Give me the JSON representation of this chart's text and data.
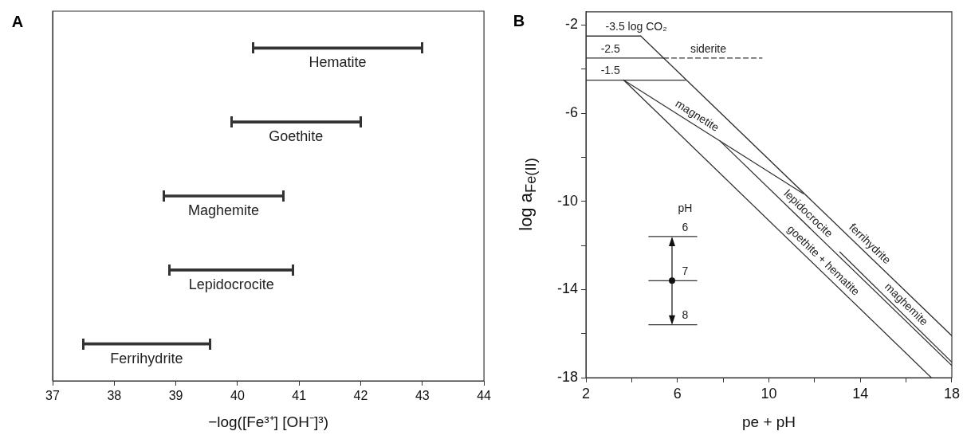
{
  "chart_data": [
    {
      "type": "bar",
      "title": "A",
      "orientation": "horizontal",
      "categories": [
        "Hematite",
        "Goethite",
        "Maghemite",
        "Lepidocrocite",
        "Ferrihydrite"
      ],
      "base": [
        40.25,
        39.9,
        38.8,
        38.9,
        37.5
      ],
      "values": [
        2.75,
        2.1,
        1.95,
        2.0,
        2.05
      ],
      "color": "#333333",
      "xlim": [
        37,
        44
      ],
      "xticks": [
        37,
        38,
        39,
        40,
        41,
        42,
        43,
        44
      ],
      "xlabel": "−log([Fe³⁺] [OH⁻]³)",
      "tick_labels": "x"
    },
    {
      "type": "line",
      "title": "B",
      "xlabel": "pe + pH",
      "ylabel": "log a$_{Fe(II)}$",
      "xlim": [
        2,
        18
      ],
      "xticks": [
        2,
        {
          "value": 4,
          "label": null
        },
        6,
        {
          "value": 8,
          "label": null
        },
        10,
        {
          "value": 12,
          "label": null
        },
        14,
        {
          "value": 16,
          "label": null
        },
        18
      ],
      "ylim": [
        -18,
        -1.4
      ],
      "yticks": [
        -18,
        {
          "value": -16,
          "label": null
        },
        -14,
        {
          "value": -12,
          "label": null
        },
        -10,
        {
          "value": -8,
          "label": null
        },
        -6,
        {
          "value": -4,
          "label": null
        },
        -2
      ],
      "series": [
        {
          "color": "#333333",
          "x": [
            4.4,
            18
          ],
          "values": [
            -2.5,
            -16.1
          ]
        },
        {
          "color": "#333333",
          "x": [
            3.65,
            17.1
          ],
          "values": [
            -4.5,
            -18
          ]
        },
        {
          "color": "#333333",
          "x": [
            3.65,
            11.5
          ],
          "values": [
            -4.5,
            -9.65
          ]
        },
        {
          "color": "#333333",
          "x": [
            7.85,
            18
          ],
          "values": [
            -7.25,
            -17.45
          ]
        },
        {
          "color": "#333333",
          "x": [
            13.1,
            18
          ],
          "values": [
            -12.3,
            -17.3
          ]
        },
        {
          "color": "#333333",
          "x": [
            2,
            4.4
          ],
          "values": [
            -2.5,
            -2.5
          ]
        },
        {
          "color": "#333333",
          "x": [
            2,
            5.4
          ],
          "values": [
            -3.5,
            -3.5
          ]
        },
        {
          "color": "#333333",
          "x": [
            5.4,
            9.7
          ],
          "values": [
            -3.5,
            -3.5
          ],
          "line_style": "dashed"
        },
        {
          "color": "#333333",
          "x": [
            2,
            6.35
          ],
          "values": [
            -4.5,
            -4.5
          ]
        },
        {
          "color": "#333333",
          "x": [
            4.75,
            6.85
          ],
          "values": [
            -11.6,
            -11.6
          ]
        },
        {
          "color": "#333333",
          "x": [
            4.75,
            6.85
          ],
          "values": [
            -13.6,
            -13.6
          ]
        },
        {
          "color": "#333333",
          "x": [
            4.75,
            6.85
          ],
          "values": [
            -15.6,
            -15.6
          ]
        }
      ],
      "annotations": [
        {
          "text": "-3.5 log CO₂",
          "x": 4.2,
          "y": -2.5
        },
        {
          "text": "-2.5",
          "x": 3.07,
          "y": -3.5
        },
        {
          "text": "siderite",
          "x": 7.35,
          "y": -3.5
        },
        {
          "text": "-1.5",
          "x": 3.07,
          "y": -4.5
        },
        {
          "text": "magnetite",
          "x": 6.65,
          "y": -6.47
        },
        {
          "text": "lepidocrocite",
          "x": 11.44,
          "y": -10.86
        },
        {
          "text": "ferrihydrite",
          "x": 14.13,
          "y": -12.23
        },
        {
          "text": "goethite + hematite",
          "x": 12.1,
          "y": -12.98
        },
        {
          "text": "maghemite",
          "x": 15.72,
          "y": -14.97
        },
        {
          "text": "6",
          "x": 6.34,
          "y": -11.6
        },
        {
          "text": "pH",
          "x": 6.34,
          "y": -11.6
        },
        {
          "text": "7",
          "x": 6.34,
          "y": -13.6
        },
        {
          "text": "8",
          "x": 6.34,
          "y": -15.6
        }
      ]
    }
  ]
}
